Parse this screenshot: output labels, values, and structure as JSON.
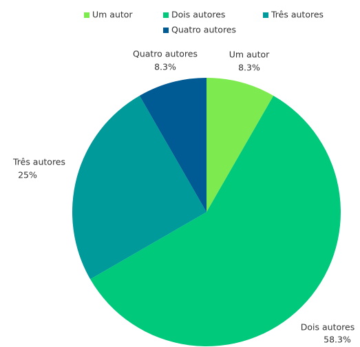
{
  "chart_data": {
    "type": "pie",
    "categories": [
      "Um autor",
      "Dois autores",
      "Três autores",
      "Quatro autores"
    ],
    "values": [
      8.3,
      58.3,
      25,
      8.3
    ],
    "value_labels": [
      "8.3%",
      "58.3%",
      "25%",
      "8.3%"
    ],
    "colors": [
      "#7deb4f",
      "#00c97c",
      "#009a9a",
      "#005a94"
    ],
    "legend": "top"
  }
}
